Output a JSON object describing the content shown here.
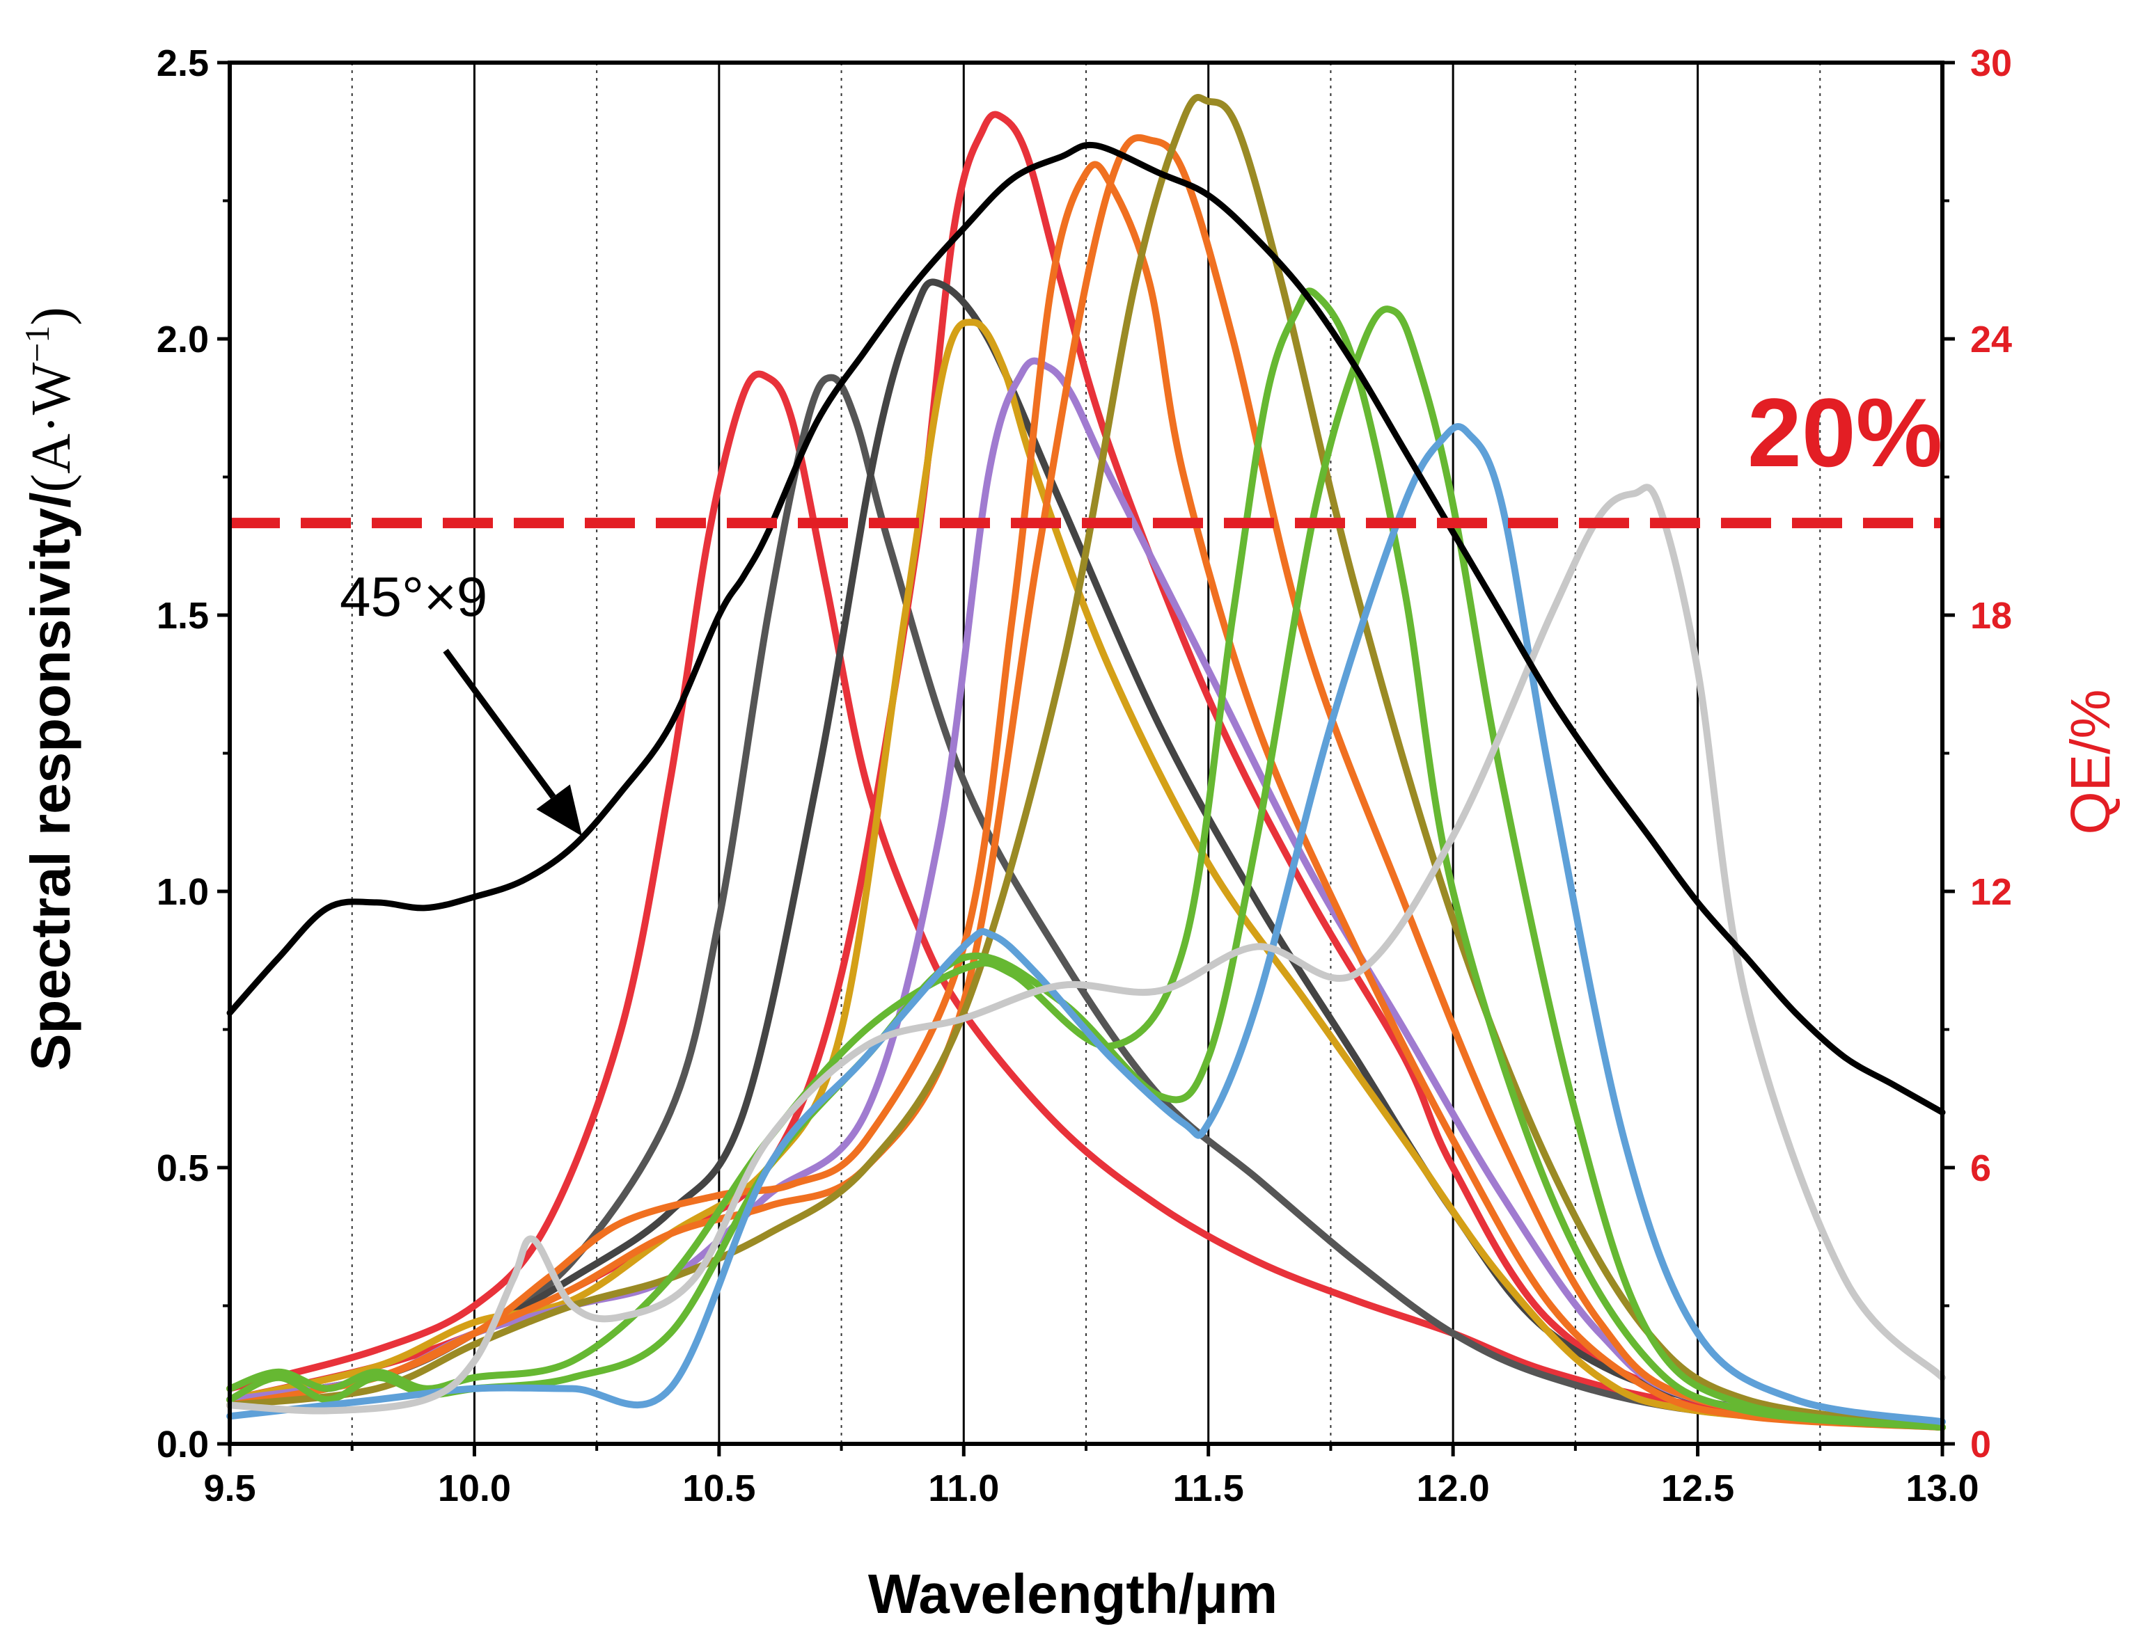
{
  "chart_data": {
    "type": "line",
    "xlabel": "Wavelength/μm",
    "ylabel_main": "Spectral responsivity/",
    "ylabel_unit": "(A·W",
    "ylabel_exp": "−1",
    "ylabel_close": ")",
    "y2label": "QE/%",
    "xlim": [
      9.5,
      13.0
    ],
    "ylim": [
      0,
      2.5
    ],
    "y2lim": [
      0,
      30
    ],
    "xticks": [
      "9.5",
      "10.0",
      "10.5",
      "11.0",
      "11.5",
      "12.0",
      "12.5",
      "13.0"
    ],
    "yticks": [
      "0.0",
      "0.5",
      "1.0",
      "1.5",
      "2.0",
      "2.5"
    ],
    "y2ticks": [
      "0",
      "6",
      "12",
      "18",
      "24",
      "30"
    ],
    "grid": {
      "x_solid": [
        10.0,
        10.5,
        11.0,
        11.5,
        12.0,
        12.5
      ],
      "x_dotted": [
        9.75,
        10.25,
        10.75,
        11.25,
        11.75,
        12.25,
        12.75
      ]
    },
    "threshold_line": {
      "qe_percent": 20,
      "label": "20%",
      "color": "#e31e24"
    },
    "annotation": {
      "text": "45°×9",
      "arrow_to": [
        10.22,
        1.1
      ]
    },
    "colors": {
      "axis": "#000000",
      "secondary_axis": "#e31e24"
    },
    "series": [
      {
        "color": "#e8323a",
        "x": [
          9.5,
          9.8,
          10.0,
          10.15,
          10.3,
          10.4,
          10.48,
          10.55,
          10.6,
          10.65,
          10.72,
          10.8,
          10.9,
          11.0,
          11.2,
          11.4,
          11.6,
          11.8,
          12.0,
          12.2,
          12.5,
          13.0
        ],
        "y": [
          0.1,
          0.17,
          0.25,
          0.4,
          0.75,
          1.2,
          1.65,
          1.9,
          1.93,
          1.85,
          1.55,
          1.2,
          0.95,
          0.78,
          0.57,
          0.43,
          0.33,
          0.26,
          0.2,
          0.13,
          0.07,
          0.03
        ]
      },
      {
        "color": "#555555",
        "x": [
          9.5,
          9.8,
          10.0,
          10.2,
          10.4,
          10.5,
          10.6,
          10.68,
          10.73,
          10.78,
          10.85,
          11.0,
          11.2,
          11.4,
          11.6,
          11.8,
          12.0,
          12.2,
          12.5,
          13.0
        ],
        "y": [
          0.08,
          0.12,
          0.2,
          0.33,
          0.6,
          0.95,
          1.5,
          1.85,
          1.93,
          1.85,
          1.62,
          1.2,
          0.88,
          0.63,
          0.48,
          0.33,
          0.2,
          0.12,
          0.06,
          0.03
        ]
      },
      {
        "color": "#e8323a",
        "x": [
          9.5,
          9.8,
          10.0,
          10.2,
          10.4,
          10.6,
          10.75,
          10.9,
          10.98,
          11.04,
          11.08,
          11.13,
          11.2,
          11.3,
          11.5,
          11.7,
          11.9,
          12.0,
          12.2,
          12.5,
          13.0
        ],
        "y": [
          0.08,
          0.14,
          0.2,
          0.28,
          0.38,
          0.5,
          0.85,
          1.6,
          2.2,
          2.38,
          2.4,
          2.33,
          2.1,
          1.8,
          1.35,
          1.0,
          0.7,
          0.5,
          0.22,
          0.08,
          0.03
        ]
      },
      {
        "color": "#444444",
        "x": [
          9.5,
          9.8,
          10.0,
          10.2,
          10.4,
          10.55,
          10.7,
          10.82,
          10.9,
          10.95,
          11.05,
          11.2,
          11.4,
          11.6,
          11.8,
          12.0,
          12.2,
          12.5,
          13.0
        ],
        "y": [
          0.08,
          0.12,
          0.2,
          0.3,
          0.42,
          0.6,
          1.2,
          1.8,
          2.05,
          2.1,
          2.0,
          1.7,
          1.3,
          0.98,
          0.7,
          0.42,
          0.2,
          0.08,
          0.03
        ]
      },
      {
        "color": "#d4a017",
        "x": [
          9.5,
          9.8,
          10.0,
          10.2,
          10.4,
          10.6,
          10.75,
          10.88,
          10.96,
          11.02,
          11.08,
          11.15,
          11.3,
          11.5,
          11.7,
          11.9,
          12.1,
          12.3,
          12.5,
          13.0
        ],
        "y": [
          0.08,
          0.14,
          0.22,
          0.26,
          0.38,
          0.5,
          0.75,
          1.5,
          1.95,
          2.03,
          1.95,
          1.75,
          1.4,
          1.05,
          0.8,
          0.55,
          0.3,
          0.12,
          0.06,
          0.03
        ]
      },
      {
        "color": "#a07bd0",
        "x": [
          9.5,
          9.8,
          10.0,
          10.2,
          10.4,
          10.6,
          10.8,
          10.95,
          11.05,
          11.12,
          11.17,
          11.22,
          11.3,
          11.5,
          11.7,
          11.9,
          12.1,
          12.3,
          12.5,
          13.0
        ],
        "y": [
          0.08,
          0.12,
          0.2,
          0.25,
          0.3,
          0.45,
          0.6,
          1.1,
          1.75,
          1.94,
          1.95,
          1.9,
          1.75,
          1.4,
          1.05,
          0.75,
          0.45,
          0.2,
          0.08,
          0.03
        ]
      },
      {
        "color": "#f07020",
        "x": [
          9.5,
          9.8,
          10.0,
          10.15,
          10.3,
          10.5,
          10.65,
          10.8,
          11.0,
          11.1,
          11.18,
          11.25,
          11.3,
          11.38,
          11.45,
          11.6,
          11.8,
          12.0,
          12.2,
          12.4,
          12.6,
          13.0
        ],
        "y": [
          0.07,
          0.12,
          0.2,
          0.3,
          0.4,
          0.45,
          0.47,
          0.55,
          0.9,
          1.5,
          2.1,
          2.3,
          2.28,
          2.1,
          1.75,
          1.3,
          0.9,
          0.55,
          0.25,
          0.1,
          0.05,
          0.03
        ]
      },
      {
        "color": "#f07020",
        "x": [
          9.5,
          9.8,
          10.0,
          10.2,
          10.4,
          10.6,
          10.8,
          11.0,
          11.15,
          11.25,
          11.32,
          11.38,
          11.45,
          11.55,
          11.7,
          11.9,
          12.1,
          12.3,
          12.5,
          13.0
        ],
        "y": [
          0.07,
          0.12,
          0.2,
          0.28,
          0.38,
          0.43,
          0.5,
          0.8,
          1.6,
          2.1,
          2.33,
          2.36,
          2.3,
          2.0,
          1.45,
          0.98,
          0.55,
          0.22,
          0.08,
          0.03
        ]
      },
      {
        "color": "#9a8a24",
        "x": [
          9.5,
          9.8,
          10.0,
          10.2,
          10.4,
          10.6,
          10.8,
          11.0,
          11.2,
          11.35,
          11.45,
          11.5,
          11.56,
          11.65,
          11.8,
          12.0,
          12.2,
          12.4,
          12.6,
          13.0
        ],
        "y": [
          0.07,
          0.1,
          0.18,
          0.25,
          0.3,
          0.38,
          0.5,
          0.78,
          1.4,
          2.1,
          2.4,
          2.43,
          2.38,
          2.1,
          1.55,
          0.95,
          0.5,
          0.2,
          0.08,
          0.03
        ]
      },
      {
        "color": "#66b832",
        "x": [
          9.5,
          9.6,
          9.7,
          9.8,
          9.9,
          10.0,
          10.2,
          10.4,
          10.6,
          10.8,
          11.0,
          11.1,
          11.3,
          11.45,
          11.55,
          11.62,
          11.68,
          11.72,
          11.8,
          11.9,
          12.0,
          12.2,
          12.4,
          12.6,
          13.0
        ],
        "y": [
          0.1,
          0.13,
          0.1,
          0.13,
          0.1,
          0.12,
          0.15,
          0.3,
          0.55,
          0.75,
          0.86,
          0.85,
          0.72,
          0.9,
          1.5,
          1.9,
          2.05,
          2.08,
          1.95,
          1.55,
          1.0,
          0.45,
          0.15,
          0.06,
          0.03
        ]
      },
      {
        "color": "#66b832",
        "x": [
          9.5,
          9.6,
          9.7,
          9.8,
          9.9,
          10.0,
          10.2,
          10.4,
          10.6,
          10.8,
          11.0,
          11.2,
          11.4,
          11.5,
          11.6,
          11.72,
          11.82,
          11.88,
          11.93,
          12.0,
          12.1,
          12.25,
          12.4,
          12.6,
          13.0
        ],
        "y": [
          0.08,
          0.12,
          0.08,
          0.12,
          0.09,
          0.1,
          0.12,
          0.2,
          0.5,
          0.7,
          0.88,
          0.8,
          0.63,
          0.7,
          1.1,
          1.7,
          2.0,
          2.05,
          1.95,
          1.7,
          1.2,
          0.6,
          0.2,
          0.07,
          0.03
        ]
      },
      {
        "color": "#5ea0d8",
        "x": [
          9.5,
          9.8,
          10.0,
          10.2,
          10.4,
          10.6,
          10.8,
          11.0,
          11.06,
          11.15,
          11.3,
          11.45,
          11.5,
          11.6,
          11.75,
          11.9,
          11.98,
          12.03,
          12.1,
          12.2,
          12.35,
          12.5,
          12.7,
          13.0
        ],
        "y": [
          0.05,
          0.08,
          0.1,
          0.1,
          0.1,
          0.5,
          0.7,
          0.9,
          0.92,
          0.85,
          0.7,
          0.58,
          0.58,
          0.8,
          1.3,
          1.7,
          1.82,
          1.83,
          1.7,
          1.2,
          0.55,
          0.2,
          0.08,
          0.04
        ]
      },
      {
        "color": "#c8c8c8",
        "x": [
          9.5,
          9.7,
          9.9,
          10.0,
          10.08,
          10.12,
          10.2,
          10.3,
          10.45,
          10.6,
          10.8,
          11.0,
          11.2,
          11.4,
          11.6,
          11.8,
          12.0,
          12.2,
          12.3,
          12.37,
          12.42,
          12.5,
          12.6,
          12.8,
          13.0
        ],
        "y": [
          0.07,
          0.06,
          0.08,
          0.15,
          0.3,
          0.37,
          0.25,
          0.23,
          0.3,
          0.55,
          0.72,
          0.77,
          0.83,
          0.82,
          0.9,
          0.85,
          1.1,
          1.5,
          1.68,
          1.72,
          1.7,
          1.4,
          0.8,
          0.3,
          0.12
        ]
      },
      {
        "color": "#000000",
        "x": [
          9.5,
          9.6,
          9.7,
          9.8,
          9.9,
          10.0,
          10.1,
          10.2,
          10.3,
          10.4,
          10.5,
          10.55,
          10.6,
          10.7,
          10.8,
          10.9,
          11.0,
          11.1,
          11.2,
          11.27,
          11.4,
          11.5,
          11.6,
          11.7,
          11.8,
          11.9,
          12.0,
          12.1,
          12.2,
          12.3,
          12.4,
          12.5,
          12.6,
          12.7,
          12.8,
          12.9,
          13.0
        ],
        "y": [
          0.78,
          0.88,
          0.97,
          0.98,
          0.97,
          0.99,
          1.02,
          1.08,
          1.18,
          1.3,
          1.5,
          1.57,
          1.65,
          1.85,
          1.98,
          2.1,
          2.2,
          2.29,
          2.33,
          2.35,
          2.3,
          2.26,
          2.18,
          2.08,
          1.95,
          1.8,
          1.65,
          1.5,
          1.35,
          1.22,
          1.1,
          0.98,
          0.88,
          0.78,
          0.7,
          0.65,
          0.6
        ]
      }
    ]
  }
}
